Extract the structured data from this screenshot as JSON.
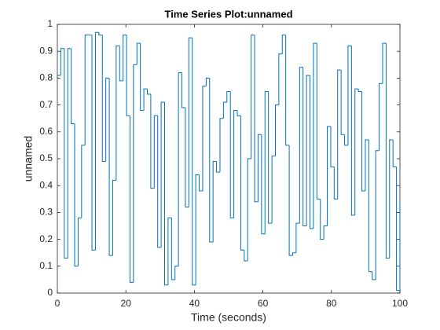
{
  "chart_data": {
    "type": "stairs",
    "title": "Time Series Plot:unnamed",
    "x_label": "Time (seconds)",
    "y_label": "unnamed",
    "x": [
      0,
      1.01,
      2.02,
      3.03,
      4.04,
      5.05,
      6.06,
      7.07,
      8.08,
      9.09,
      10.1,
      11.11,
      12.12,
      13.13,
      14.14,
      15.15,
      16.16,
      17.17,
      18.18,
      19.19,
      20.2,
      21.21,
      22.22,
      23.23,
      24.24,
      25.25,
      26.26,
      27.27,
      28.28,
      29.29,
      30.3,
      31.31,
      32.32,
      33.33,
      34.34,
      35.35,
      36.36,
      37.37,
      38.38,
      39.39,
      40.4,
      41.41,
      42.42,
      43.43,
      44.44,
      45.45,
      46.46,
      47.47,
      48.48,
      49.49,
      50.51,
      51.52,
      52.53,
      53.54,
      54.55,
      55.56,
      56.57,
      57.58,
      58.59,
      59.6,
      60.61,
      61.62,
      62.63,
      63.64,
      64.65,
      65.66,
      66.67,
      67.68,
      68.69,
      69.7,
      70.71,
      71.72,
      72.73,
      73.74,
      74.75,
      75.76,
      76.77,
      77.78,
      78.79,
      79.8,
      80.81,
      81.82,
      82.83,
      83.84,
      84.85,
      85.86,
      86.87,
      87.88,
      88.89,
      89.9,
      90.91,
      91.92,
      92.93,
      93.94,
      94.95,
      95.96,
      96.97,
      97.98,
      98.99,
      100
    ],
    "series": [
      {
        "name": "unnamed",
        "color": "#0072bd",
        "values": [
          0.81,
          0.91,
          0.13,
          0.91,
          0.63,
          0.1,
          0.28,
          0.55,
          0.96,
          0.96,
          0.16,
          0.97,
          0.96,
          0.49,
          0.8,
          0.14,
          0.42,
          0.92,
          0.79,
          0.96,
          0.66,
          0.04,
          0.85,
          0.93,
          0.68,
          0.76,
          0.74,
          0.39,
          0.66,
          0.17,
          0.71,
          0.03,
          0.28,
          0.05,
          0.1,
          0.82,
          0.69,
          0.32,
          0.95,
          0.03,
          0.44,
          0.38,
          0.77,
          0.8,
          0.19,
          0.49,
          0.45,
          0.65,
          0.71,
          0.75,
          0.28,
          0.68,
          0.66,
          0.16,
          0.12,
          0.5,
          0.96,
          0.34,
          0.59,
          0.22,
          0.75,
          0.26,
          0.51,
          0.7,
          0.89,
          0.96,
          0.55,
          0.14,
          0.15,
          0.26,
          0.84,
          0.25,
          0.81,
          0.24,
          0.93,
          0.35,
          0.2,
          0.25,
          0.62,
          0.47,
          0.35,
          0.83,
          0.59,
          0.55,
          0.92,
          0.29,
          0.76,
          0.75,
          0.38,
          0.57,
          0.08,
          0.05,
          0.53,
          0.78,
          0.93,
          0.13,
          0.57,
          0.47,
          0.01,
          0.34
        ]
      }
    ],
    "xlim": [
      0,
      100
    ],
    "ylim": [
      0,
      1
    ],
    "xticks": [
      0,
      20,
      40,
      60,
      80,
      100
    ],
    "yticks": [
      0,
      0.1,
      0.2,
      0.3,
      0.4,
      0.5,
      0.6,
      0.7,
      0.8,
      0.9,
      1
    ]
  }
}
